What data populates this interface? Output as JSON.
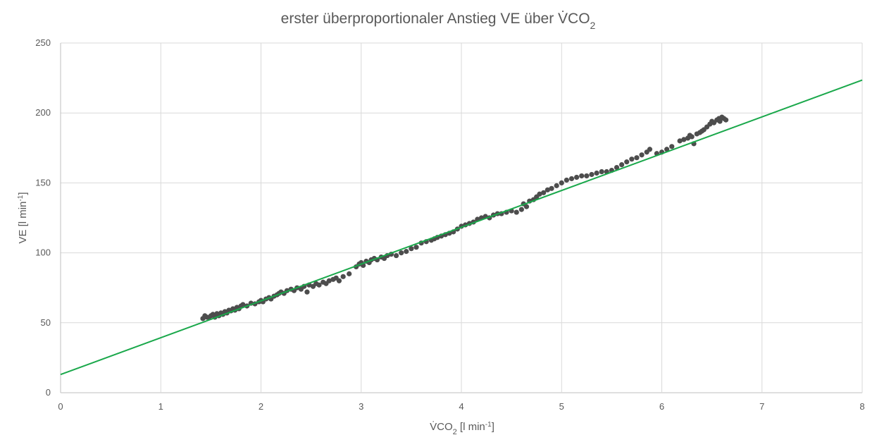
{
  "chart_data": {
    "type": "scatter",
    "title": "erster überproportionaler Anstieg VE über V̇CO",
    "title_sub": "2",
    "xlabel_pre": "V̇CO",
    "xlabel_sub": "2",
    "xlabel_post": " [l min",
    "xlabel_sup": "-1",
    "xlabel_end": "]",
    "ylabel_pre": "VE [l min",
    "ylabel_sup": "-1",
    "ylabel_end": "]",
    "xlim": [
      0,
      8
    ],
    "ylim": [
      0,
      250
    ],
    "x_ticks": [
      "0",
      "1",
      "2",
      "3",
      "4",
      "5",
      "6",
      "7",
      "8"
    ],
    "y_ticks": [
      "0",
      "50",
      "100",
      "150",
      "200",
      "250"
    ],
    "grid": true,
    "marker_color": "#4d4d4d",
    "trendline": {
      "color": "#1aa84b",
      "x": [
        0,
        8
      ],
      "y": [
        13,
        223.5
      ]
    },
    "points": [
      [
        1.42,
        53
      ],
      [
        1.44,
        55
      ],
      [
        1.46,
        54
      ],
      [
        1.48,
        53.5
      ],
      [
        1.5,
        55
      ],
      [
        1.52,
        56
      ],
      [
        1.54,
        54
      ],
      [
        1.56,
        56.5
      ],
      [
        1.58,
        55
      ],
      [
        1.6,
        57
      ],
      [
        1.62,
        56
      ],
      [
        1.64,
        58
      ],
      [
        1.66,
        57
      ],
      [
        1.68,
        59
      ],
      [
        1.7,
        58.5
      ],
      [
        1.72,
        60
      ],
      [
        1.74,
        59
      ],
      [
        1.76,
        61
      ],
      [
        1.78,
        60
      ],
      [
        1.8,
        62
      ],
      [
        1.82,
        63
      ],
      [
        1.86,
        62
      ],
      [
        1.9,
        64
      ],
      [
        1.94,
        63.5
      ],
      [
        1.98,
        65
      ],
      [
        2.0,
        66
      ],
      [
        2.02,
        65
      ],
      [
        2.05,
        67
      ],
      [
        2.08,
        68
      ],
      [
        2.1,
        67
      ],
      [
        2.13,
        69
      ],
      [
        2.16,
        70
      ],
      [
        2.18,
        71
      ],
      [
        2.2,
        72
      ],
      [
        2.23,
        71
      ],
      [
        2.26,
        73
      ],
      [
        2.3,
        74
      ],
      [
        2.33,
        73
      ],
      [
        2.36,
        75
      ],
      [
        2.4,
        74
      ],
      [
        2.43,
        76
      ],
      [
        2.46,
        72
      ],
      [
        2.48,
        77
      ],
      [
        2.52,
        76
      ],
      [
        2.55,
        78
      ],
      [
        2.58,
        77
      ],
      [
        2.62,
        79
      ],
      [
        2.65,
        78
      ],
      [
        2.68,
        80
      ],
      [
        2.72,
        81
      ],
      [
        2.75,
        82
      ],
      [
        2.78,
        80
      ],
      [
        2.82,
        83
      ],
      [
        2.88,
        85
      ],
      [
        2.95,
        90
      ],
      [
        2.98,
        92
      ],
      [
        3.0,
        93
      ],
      [
        3.02,
        91
      ],
      [
        3.05,
        94
      ],
      [
        3.08,
        93
      ],
      [
        3.1,
        95
      ],
      [
        3.13,
        96
      ],
      [
        3.16,
        95
      ],
      [
        3.2,
        97
      ],
      [
        3.23,
        96
      ],
      [
        3.26,
        98
      ],
      [
        3.3,
        99
      ],
      [
        3.35,
        98
      ],
      [
        3.4,
        100
      ],
      [
        3.45,
        101
      ],
      [
        3.5,
        103
      ],
      [
        3.55,
        104
      ],
      [
        3.6,
        107
      ],
      [
        3.65,
        108
      ],
      [
        3.7,
        109
      ],
      [
        3.73,
        110
      ],
      [
        3.76,
        111
      ],
      [
        3.8,
        112
      ],
      [
        3.84,
        113
      ],
      [
        3.88,
        114
      ],
      [
        3.92,
        115
      ],
      [
        3.96,
        117
      ],
      [
        4.0,
        119
      ],
      [
        4.04,
        120
      ],
      [
        4.08,
        121
      ],
      [
        4.12,
        122
      ],
      [
        4.16,
        124
      ],
      [
        4.2,
        125
      ],
      [
        4.24,
        126
      ],
      [
        4.28,
        125
      ],
      [
        4.32,
        127
      ],
      [
        4.36,
        128
      ],
      [
        4.4,
        128
      ],
      [
        4.45,
        129
      ],
      [
        4.5,
        130
      ],
      [
        4.55,
        129
      ],
      [
        4.6,
        131
      ],
      [
        4.62,
        135
      ],
      [
        4.65,
        133
      ],
      [
        4.68,
        137
      ],
      [
        4.72,
        138
      ],
      [
        4.75,
        140
      ],
      [
        4.78,
        142
      ],
      [
        4.82,
        143
      ],
      [
        4.86,
        145
      ],
      [
        4.9,
        146
      ],
      [
        4.95,
        148
      ],
      [
        5.0,
        150
      ],
      [
        5.05,
        152
      ],
      [
        5.1,
        153
      ],
      [
        5.15,
        154
      ],
      [
        5.2,
        155
      ],
      [
        5.25,
        155
      ],
      [
        5.3,
        156
      ],
      [
        5.35,
        157
      ],
      [
        5.4,
        158
      ],
      [
        5.45,
        158
      ],
      [
        5.5,
        159
      ],
      [
        5.55,
        161
      ],
      [
        5.6,
        163
      ],
      [
        5.65,
        165
      ],
      [
        5.7,
        167
      ],
      [
        5.75,
        168
      ],
      [
        5.8,
        170
      ],
      [
        5.85,
        172
      ],
      [
        5.88,
        174
      ],
      [
        5.95,
        171
      ],
      [
        6.0,
        172
      ],
      [
        6.05,
        174
      ],
      [
        6.1,
        176
      ],
      [
        6.18,
        180
      ],
      [
        6.22,
        181
      ],
      [
        6.26,
        182
      ],
      [
        6.28,
        184
      ],
      [
        6.3,
        183
      ],
      [
        6.32,
        178
      ],
      [
        6.35,
        185
      ],
      [
        6.38,
        186
      ],
      [
        6.4,
        187
      ],
      [
        6.42,
        188
      ],
      [
        6.45,
        190
      ],
      [
        6.48,
        192
      ],
      [
        6.5,
        194
      ],
      [
        6.52,
        193
      ],
      [
        6.55,
        195
      ],
      [
        6.57,
        196
      ],
      [
        6.58,
        194
      ],
      [
        6.6,
        197
      ],
      [
        6.62,
        196
      ],
      [
        6.64,
        195
      ]
    ]
  }
}
